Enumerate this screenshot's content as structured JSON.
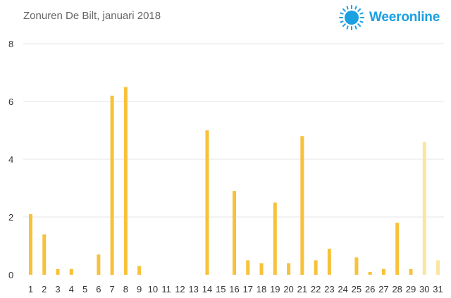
{
  "chart_data": {
    "type": "bar",
    "title": "Zonuren De Bilt, januari 2018",
    "xlabel": "",
    "ylabel": "",
    "ylim": [
      0,
      8
    ],
    "yticks": [
      "0",
      "2",
      "4",
      "6",
      "8"
    ],
    "categories": [
      "1",
      "2",
      "3",
      "4",
      "5",
      "6",
      "7",
      "8",
      "9",
      "10",
      "11",
      "12",
      "13",
      "14",
      "15",
      "16",
      "17",
      "18",
      "19",
      "20",
      "21",
      "22",
      "23",
      "24",
      "25",
      "26",
      "27",
      "28",
      "29",
      "30",
      "31"
    ],
    "values": [
      2.1,
      1.4,
      0.2,
      0.2,
      0,
      0.7,
      6.2,
      6.5,
      0.3,
      0,
      0,
      0,
      0,
      5.0,
      0,
      2.9,
      0.5,
      0.4,
      2.5,
      0.4,
      4.8,
      0.5,
      0.9,
      0,
      0.6,
      0.1,
      0.2,
      1.8,
      0.2,
      4.6,
      0.5
    ],
    "highlight_from_index": 29,
    "colors": {
      "bar": "#f7c23a",
      "bar_light": "#fae6a2",
      "grid": "#e6e6e6"
    },
    "grid": true
  },
  "brand": {
    "name": "Weeronline",
    "icon": "sun-logo-icon",
    "color": "#1ba0e2"
  }
}
